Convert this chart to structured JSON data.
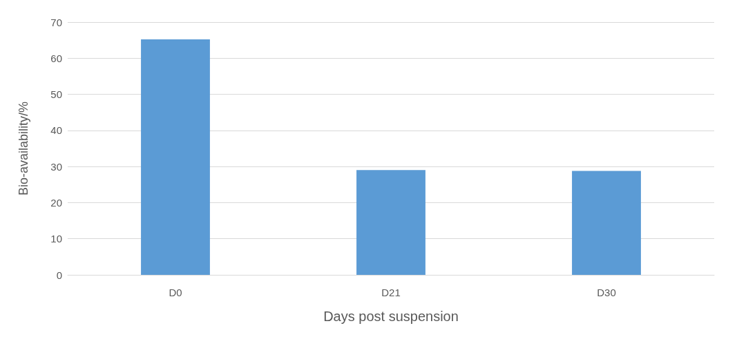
{
  "chart_data": {
    "type": "bar",
    "xlabel": "Days post suspension",
    "ylabel": "Bio-availability/%",
    "categories": [
      "D0",
      "D21",
      "D30"
    ],
    "values": [
      65.2,
      29.0,
      28.8
    ],
    "color": "#5b9bd5",
    "ylim": [
      0,
      70
    ],
    "yticks": [
      0,
      10,
      20,
      30,
      40,
      50,
      60,
      70
    ],
    "grid": "y"
  }
}
